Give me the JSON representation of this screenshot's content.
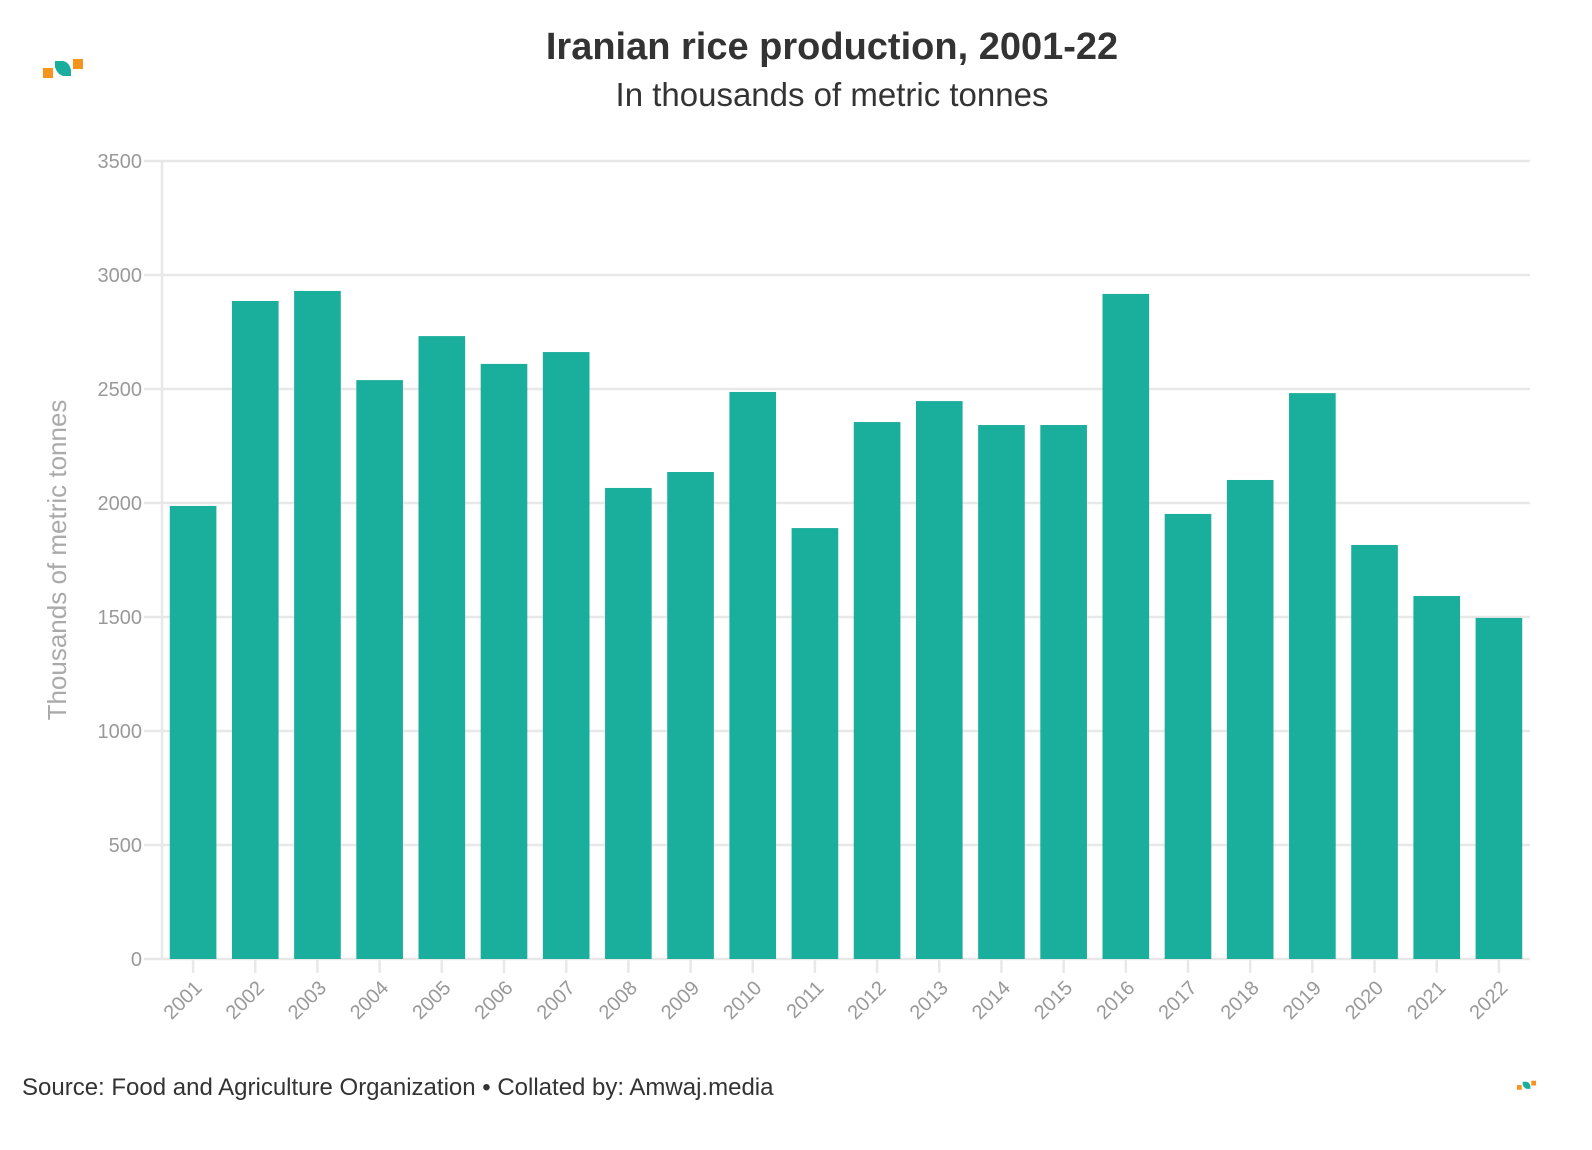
{
  "header": {
    "title": "Iranian rice production, 2001-22",
    "subtitle": "In thousands of metric tonnes"
  },
  "footer": {
    "source": "Source: Food and Agriculture Organization • Collated by: Amwaj.media"
  },
  "colors": {
    "bar": "#1aae9c",
    "logo_orange": "#f7941d",
    "logo_teal": "#1aae9c",
    "grid": "#e8e8e8",
    "tick_text": "#999999"
  },
  "chart_data": {
    "type": "bar",
    "title": "Iranian rice production, 2001-22",
    "subtitle": "In thousands of metric tonnes",
    "xlabel": "",
    "ylabel": "Thousands of metric tonnes",
    "ylim": [
      0,
      3500
    ],
    "yticks": [
      0,
      500,
      1000,
      1500,
      2000,
      2500,
      3000,
      3500
    ],
    "grid": true,
    "categories": [
      "2001",
      "2002",
      "2003",
      "2004",
      "2005",
      "2006",
      "2007",
      "2008",
      "2009",
      "2010",
      "2011",
      "2012",
      "2013",
      "2014",
      "2015",
      "2016",
      "2017",
      "2018",
      "2019",
      "2020",
      "2021",
      "2022"
    ],
    "values": [
      1987,
      2886,
      2930,
      2539,
      2732,
      2610,
      2662,
      2066,
      2136,
      2487,
      1890,
      2355,
      2447,
      2342,
      2342,
      2917,
      1952,
      2101,
      2482,
      1816,
      1592,
      1496
    ]
  }
}
